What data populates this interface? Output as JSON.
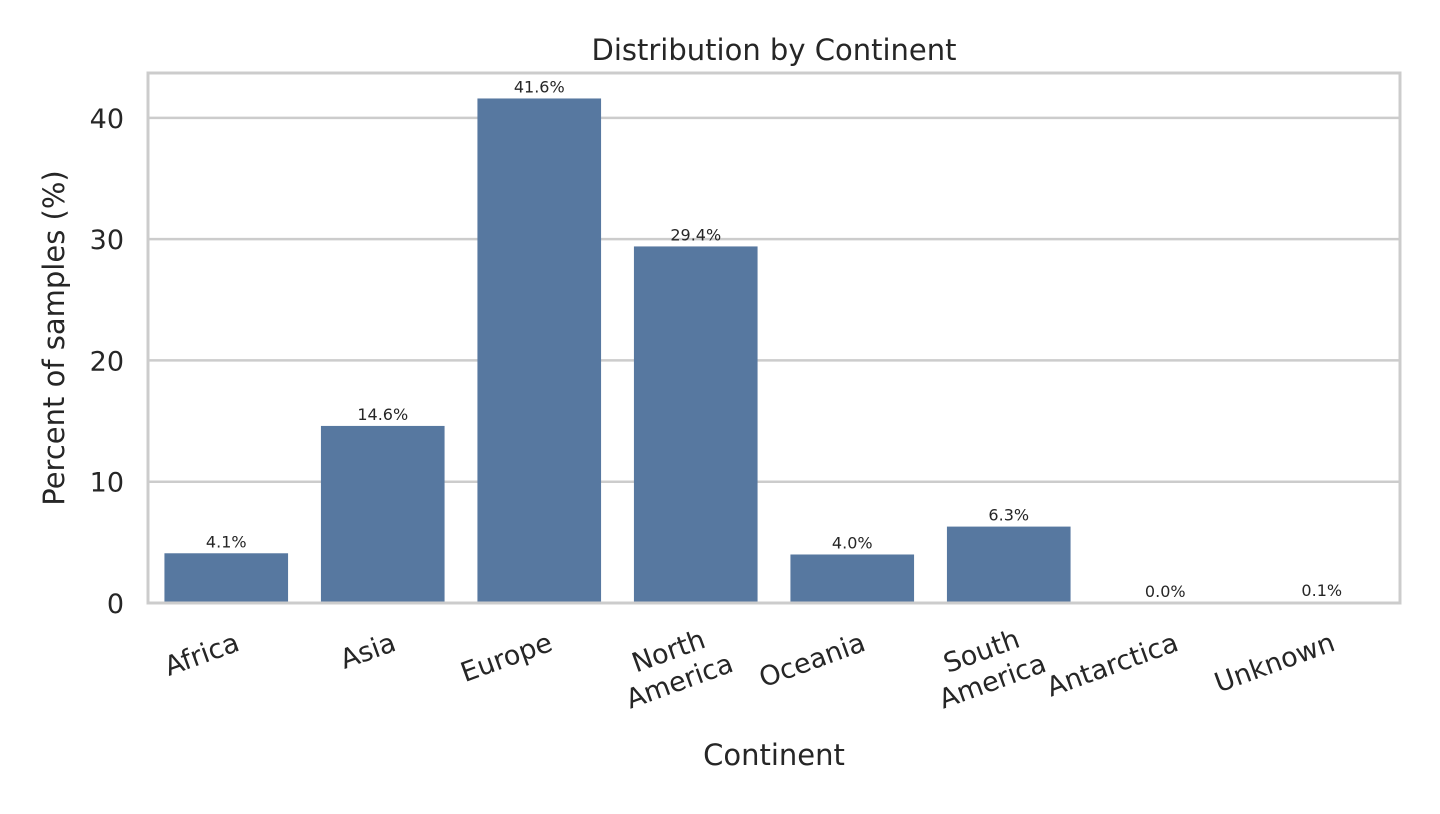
{
  "chart_data": {
    "type": "bar",
    "title": "Distribution by Continent",
    "xlabel": "Continent",
    "ylabel": "Percent of samples (%)",
    "categories": [
      "Africa",
      "Asia",
      "Europe",
      "North America",
      "Oceania",
      "South America",
      "Antarctica",
      "Unknown"
    ],
    "category_label_lines": [
      [
        "Africa"
      ],
      [
        "Asia"
      ],
      [
        "Europe"
      ],
      [
        "North",
        "America"
      ],
      [
        "Oceania"
      ],
      [
        "South",
        "America"
      ],
      [
        "Antarctica"
      ],
      [
        "Unknown"
      ]
    ],
    "values": [
      4.1,
      14.6,
      41.6,
      29.4,
      4.0,
      6.3,
      0.0,
      0.1
    ],
    "value_labels": [
      "4.1%",
      "14.6%",
      "41.6%",
      "29.4%",
      "4.0%",
      "6.3%",
      "0.0%",
      "0.1%"
    ],
    "ylim": [
      0,
      43.7
    ],
    "yticks": [
      0,
      10,
      20,
      30,
      40
    ],
    "grid": true,
    "legend": null,
    "colors": {
      "bar": "#5778a0",
      "grid": "#cccccc",
      "spine": "#cccccc",
      "text": "#262626"
    }
  }
}
